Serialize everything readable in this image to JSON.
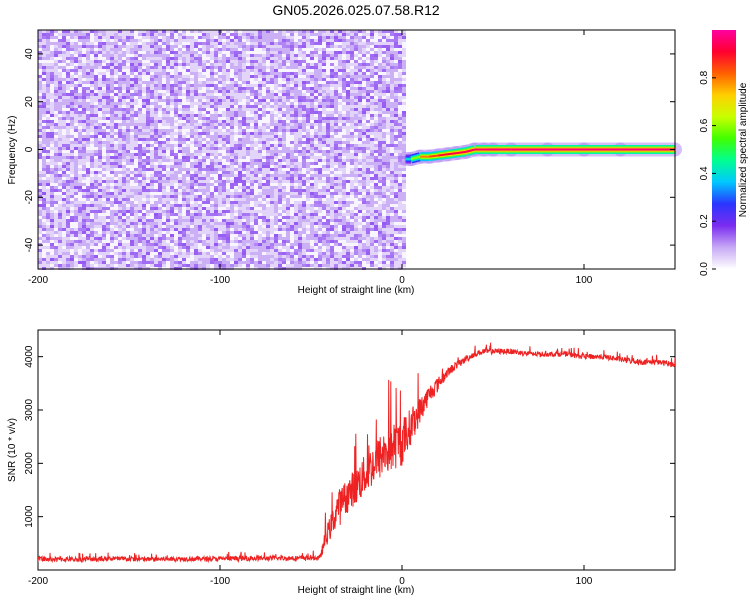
{
  "title": "GN05.2026.025.07.58.R12",
  "chart_data": [
    {
      "type": "heatmap",
      "title": "",
      "xlabel": "Height of straight line (km)",
      "ylabel": "Frequency (Hz)",
      "xlim": [
        -200,
        150
      ],
      "ylim": [
        -50,
        50
      ],
      "xticks": [
        -200,
        -100,
        0,
        100
      ],
      "xtick_labels": [
        "-200",
        "-100",
        "0",
        "100"
      ],
      "yticks": [
        -40,
        -20,
        0,
        20,
        40
      ],
      "ytick_labels": [
        "-40",
        "-20",
        "0",
        "20",
        "40"
      ],
      "noise_region_x": [
        -200,
        2
      ],
      "noise_amplitude_range": [
        0.0,
        0.15
      ],
      "signal_line": {
        "x": [
          2,
          5,
          10,
          15,
          20,
          25,
          30,
          35,
          40,
          45,
          50,
          60,
          80,
          100,
          120,
          150
        ],
        "frequency": [
          -4,
          -4,
          -3,
          -3,
          -2.5,
          -2,
          -1.5,
          -1,
          0,
          0,
          0,
          0,
          0,
          0,
          0,
          0
        ],
        "amplitude": [
          0.4,
          0.6,
          0.8,
          0.85,
          0.9,
          0.92,
          0.93,
          0.94,
          0.95,
          0.96,
          0.97,
          0.97,
          0.97,
          0.97,
          0.97,
          0.97
        ]
      },
      "colorbar": {
        "label": "Normalized spectral amplitude",
        "ticks": [
          0.0,
          0.2,
          0.4,
          0.6,
          0.8
        ],
        "tick_labels": [
          "0.0",
          "0.2",
          "0.4",
          "0.6",
          "0.8"
        ],
        "range": [
          0,
          1
        ],
        "colors": [
          "#ffffff",
          "#c6a8f5",
          "#7a2cf0",
          "#2a36ff",
          "#00c8ff",
          "#00ff90",
          "#40ff00",
          "#c8ff00",
          "#ffd000",
          "#ff6000",
          "#ff0030",
          "#ff00a0"
        ]
      },
      "grid": false
    },
    {
      "type": "line",
      "title": "",
      "xlabel": "Height of straight line (km)",
      "ylabel": "SNR (10 * v/v)",
      "xlim": [
        -200,
        150
      ],
      "ylim": [
        0,
        4500
      ],
      "xticks": [
        -200,
        -100,
        0,
        100
      ],
      "xtick_labels": [
        "-200",
        "-100",
        "0",
        "100"
      ],
      "yticks": [
        1000,
        2000,
        3000,
        4000
      ],
      "ytick_labels": [
        "1000",
        "2000",
        "3000",
        "4000"
      ],
      "series": [
        {
          "color": "#ee2222",
          "x": [
            -200,
            -180,
            -160,
            -140,
            -120,
            -100,
            -80,
            -60,
            -45,
            -42,
            -38,
            -35,
            -30,
            -25,
            -20,
            -15,
            -10,
            -5,
            0,
            5,
            10,
            15,
            20,
            25,
            30,
            35,
            40,
            45,
            50,
            60,
            70,
            80,
            90,
            100,
            110,
            120,
            130,
            140,
            150
          ],
          "y": [
            200,
            200,
            210,
            200,
            210,
            210,
            220,
            220,
            230,
            600,
            900,
            1200,
            1400,
            1600,
            1800,
            2000,
            2200,
            2300,
            2400,
            2700,
            3000,
            3300,
            3500,
            3700,
            3850,
            3950,
            4050,
            4100,
            4100,
            4100,
            4050,
            4050,
            4050,
            4000,
            4000,
            3950,
            3900,
            3900,
            3850
          ],
          "noise_amplitude": [
            90,
            90,
            90,
            90,
            90,
            90,
            90,
            90,
            90,
            350,
            500,
            600,
            650,
            700,
            750,
            800,
            900,
            900,
            900,
            700,
            500,
            350,
            250,
            180,
            140,
            120,
            110,
            110,
            110,
            100,
            100,
            100,
            100,
            100,
            100,
            100,
            100,
            100,
            100
          ]
        }
      ],
      "grid": false
    }
  ]
}
